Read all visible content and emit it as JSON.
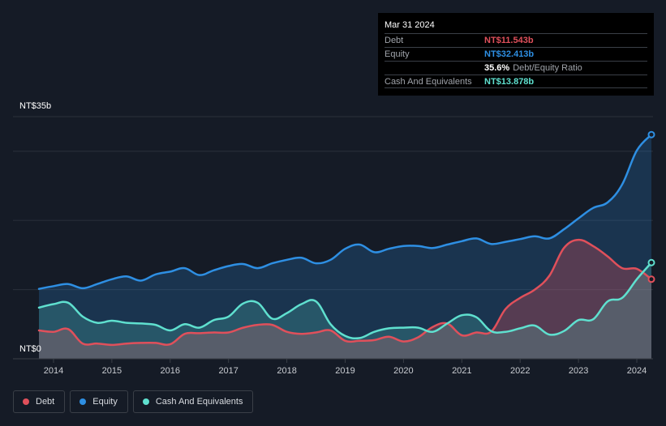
{
  "tooltip": {
    "date": "Mar 31 2024",
    "debt_label": "Debt",
    "debt_value": "NT$11.543b",
    "equity_label": "Equity",
    "equity_value": "NT$32.413b",
    "ratio_value": "35.6%",
    "ratio_label": "Debt/Equity Ratio",
    "cash_label": "Cash And Equivalents",
    "cash_value": "NT$13.878b"
  },
  "legend": [
    {
      "label": "Debt",
      "color": "#e0505b"
    },
    {
      "label": "Equity",
      "color": "#2e8fe3"
    },
    {
      "label": "Cash And Equivalents",
      "color": "#5fe0cf"
    }
  ],
  "chart_data": {
    "type": "area",
    "ylim": [
      0,
      35
    ],
    "xlim": [
      2013.75,
      2024.25
    ],
    "y_tick_labels": [
      {
        "value": 35,
        "label": "NT$35b"
      },
      {
        "value": 0,
        "label": "NT$0"
      }
    ],
    "y_gridlines": [
      10,
      20,
      30,
      35
    ],
    "x_ticks": [
      2014,
      2015,
      2016,
      2017,
      2018,
      2019,
      2020,
      2021,
      2022,
      2023,
      2024
    ],
    "colors": {
      "debt": "#e0505b",
      "equity": "#2e8fe3",
      "cash": "#5fe0cf"
    },
    "series": [
      {
        "name": "Equity",
        "x": [
          2013.75,
          2014.0,
          2014.25,
          2014.5,
          2014.75,
          2015.0,
          2015.25,
          2015.5,
          2015.75,
          2016.0,
          2016.25,
          2016.5,
          2016.75,
          2017.0,
          2017.25,
          2017.5,
          2017.75,
          2018.0,
          2018.25,
          2018.5,
          2018.75,
          2019.0,
          2019.25,
          2019.5,
          2019.75,
          2020.0,
          2020.25,
          2020.5,
          2020.75,
          2021.0,
          2021.25,
          2021.5,
          2021.75,
          2022.0,
          2022.25,
          2022.5,
          2022.75,
          2023.0,
          2023.25,
          2023.5,
          2023.75,
          2024.0,
          2024.25
        ],
        "values": [
          10.1,
          10.5,
          10.8,
          10.2,
          10.8,
          11.5,
          11.9,
          11.3,
          12.2,
          12.6,
          13.1,
          12.1,
          12.8,
          13.4,
          13.7,
          13.1,
          13.8,
          14.3,
          14.6,
          13.8,
          14.3,
          15.9,
          16.5,
          15.4,
          15.9,
          16.3,
          16.3,
          16.0,
          16.5,
          17.0,
          17.4,
          16.6,
          16.9,
          17.3,
          17.7,
          17.4,
          18.7,
          20.3,
          21.8,
          22.6,
          25.2,
          30.1,
          32.4
        ]
      },
      {
        "name": "Debt",
        "x": [
          2013.75,
          2014.0,
          2014.25,
          2014.5,
          2014.75,
          2015.0,
          2015.25,
          2015.5,
          2015.75,
          2016.0,
          2016.25,
          2016.5,
          2016.75,
          2017.0,
          2017.25,
          2017.5,
          2017.75,
          2018.0,
          2018.25,
          2018.5,
          2018.75,
          2019.0,
          2019.25,
          2019.5,
          2019.75,
          2020.0,
          2020.25,
          2020.5,
          2020.75,
          2021.0,
          2021.25,
          2021.5,
          2021.75,
          2022.0,
          2022.25,
          2022.5,
          2022.75,
          2023.0,
          2023.25,
          2023.5,
          2023.75,
          2024.0,
          2024.25
        ],
        "values": [
          4.1,
          3.9,
          4.3,
          2.2,
          2.2,
          2.0,
          2.2,
          2.3,
          2.3,
          2.1,
          3.6,
          3.7,
          3.8,
          3.8,
          4.5,
          4.9,
          4.9,
          3.9,
          3.6,
          3.8,
          4.1,
          2.6,
          2.6,
          2.7,
          3.2,
          2.5,
          3.1,
          4.6,
          5.1,
          3.4,
          3.8,
          3.9,
          7.2,
          8.8,
          10.0,
          12.0,
          16.0,
          17.2,
          16.3,
          14.8,
          13.1,
          13.0,
          11.5
        ]
      },
      {
        "name": "Cash And Equivalents",
        "x": [
          2013.75,
          2014.0,
          2014.25,
          2014.5,
          2014.75,
          2015.0,
          2015.25,
          2015.5,
          2015.75,
          2016.0,
          2016.25,
          2016.5,
          2016.75,
          2017.0,
          2017.25,
          2017.5,
          2017.75,
          2018.0,
          2018.25,
          2018.5,
          2018.75,
          2019.0,
          2019.25,
          2019.5,
          2019.75,
          2020.0,
          2020.25,
          2020.5,
          2020.75,
          2021.0,
          2021.25,
          2021.5,
          2021.75,
          2022.0,
          2022.25,
          2022.5,
          2022.75,
          2023.0,
          2023.25,
          2023.5,
          2023.75,
          2024.0,
          2024.25
        ],
        "values": [
          7.4,
          7.9,
          8.1,
          6.1,
          5.2,
          5.5,
          5.2,
          5.1,
          4.9,
          4.1,
          5.0,
          4.5,
          5.6,
          6.1,
          8.0,
          8.1,
          5.8,
          6.6,
          7.9,
          8.3,
          5.0,
          3.3,
          3.0,
          3.9,
          4.4,
          4.5,
          4.5,
          3.9,
          5.1,
          6.3,
          6.0,
          4.0,
          3.9,
          4.4,
          4.8,
          3.5,
          4.0,
          5.6,
          5.7,
          8.3,
          8.8,
          11.5,
          13.9
        ]
      }
    ]
  }
}
